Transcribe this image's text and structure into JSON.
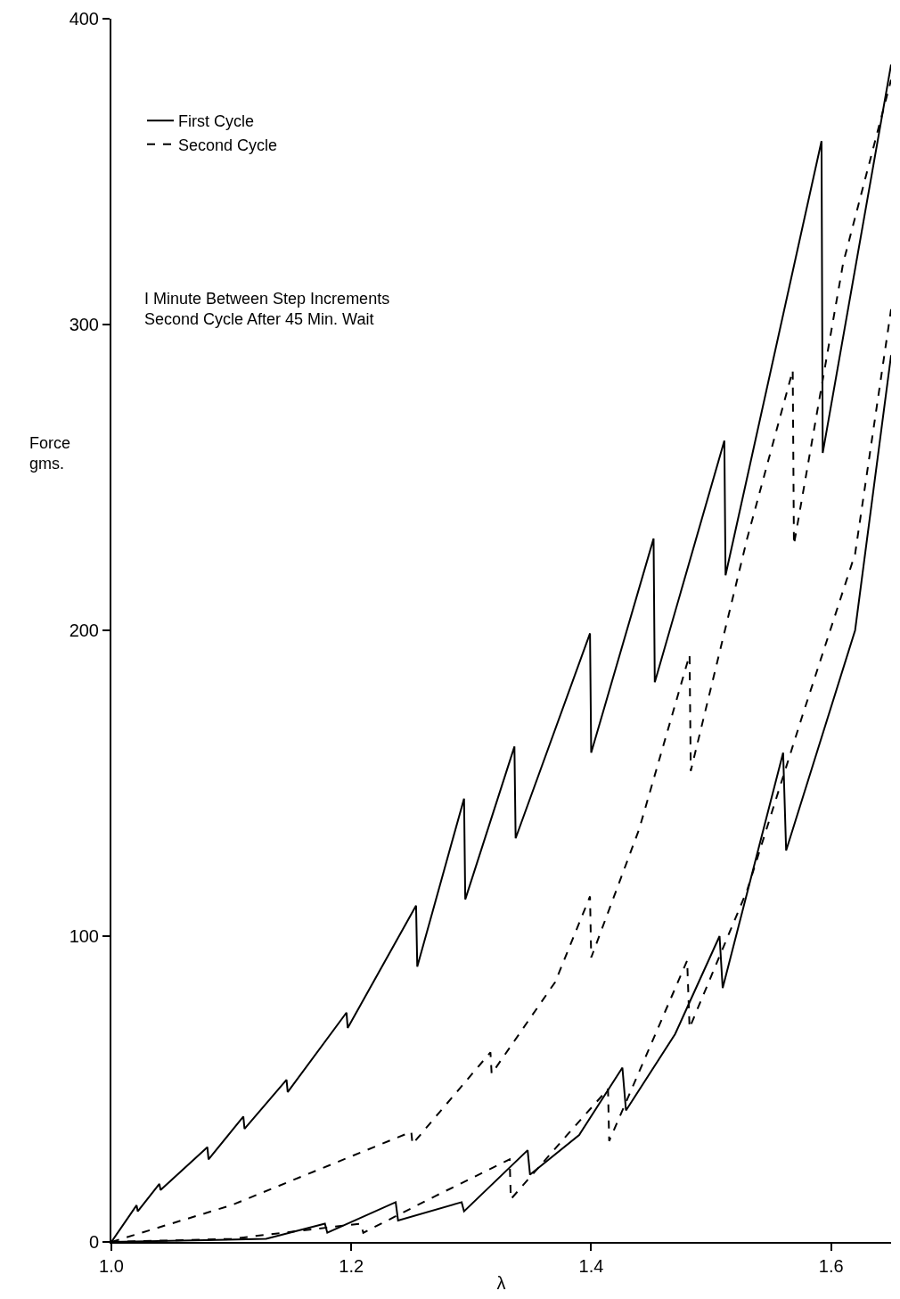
{
  "chart_data": {
    "type": "line",
    "xlabel": "λ",
    "ylabel": "Force\ngms.",
    "annotations": [
      "I Minute Between Step Increments\nSecond Cycle After 45 Min. Wait"
    ],
    "xlim": [
      1.0,
      1.65
    ],
    "ylim": [
      0,
      400
    ],
    "xticks": [
      {
        "value": 1.0,
        "label": "1.0"
      },
      {
        "value": 1.2,
        "label": "1.2"
      },
      {
        "value": 1.4,
        "label": "1.4"
      },
      {
        "value": 1.6,
        "label": "1.6"
      }
    ],
    "yticks": [
      0,
      100,
      200,
      300,
      400
    ],
    "legend": "top left",
    "marker": "none",
    "series": [
      {
        "name": "First Cycle",
        "color": "#000000",
        "line_style": "solid",
        "x": [
          1.0,
          1.021,
          1.022,
          1.04,
          1.041,
          1.08,
          1.081,
          1.11,
          1.111,
          1.146,
          1.147,
          1.196,
          1.197,
          1.254,
          1.255,
          1.294,
          1.295,
          1.336,
          1.337,
          1.399,
          1.4,
          1.452,
          1.453,
          1.511,
          1.512,
          1.592,
          1.593,
          1.65
        ],
        "values": [
          0,
          12,
          10,
          19,
          17,
          31,
          27,
          41,
          37,
          53,
          49,
          75,
          70,
          110,
          90,
          145,
          112,
          162,
          132,
          199,
          160,
          230,
          183,
          262,
          218,
          360,
          258,
          385
        ]
      },
      {
        "name": "Second Cycle",
        "color": "#000000",
        "line_style": "dashed",
        "x": [
          1.0,
          1.1,
          1.2,
          1.25,
          1.251,
          1.316,
          1.317,
          1.37,
          1.399,
          1.4,
          1.44,
          1.482,
          1.483,
          1.53,
          1.568,
          1.569,
          1.61,
          1.65
        ],
        "values": [
          0,
          12,
          28,
          36,
          32,
          62,
          55,
          85,
          113,
          93,
          135,
          192,
          154,
          230,
          285,
          228,
          320,
          380
        ]
      },
      {
        "color": "#000000",
        "line_style": "solid",
        "x": [
          1.0,
          1.129,
          1.178,
          1.18,
          1.237,
          1.239,
          1.292,
          1.294,
          1.347,
          1.349,
          1.39,
          1.426,
          1.429,
          1.47,
          1.507,
          1.5096,
          1.56,
          1.5625,
          1.62,
          1.65
        ],
        "values": [
          0,
          1,
          6,
          3,
          13,
          7,
          13,
          10,
          30,
          22,
          35,
          57,
          43,
          68,
          100,
          83,
          160,
          128,
          200,
          290
        ]
      },
      {
        "color": "#000000",
        "line_style": "dashed",
        "x": [
          1.0,
          1.1,
          1.208,
          1.21,
          1.27,
          1.332,
          1.333,
          1.38,
          1.414,
          1.415,
          1.48,
          1.482,
          1.53,
          1.576,
          1.62,
          1.65
        ],
        "values": [
          0,
          1,
          6,
          3,
          15,
          27,
          14,
          35,
          50,
          33,
          92,
          70,
          115,
          172,
          225,
          305
        ]
      }
    ]
  }
}
